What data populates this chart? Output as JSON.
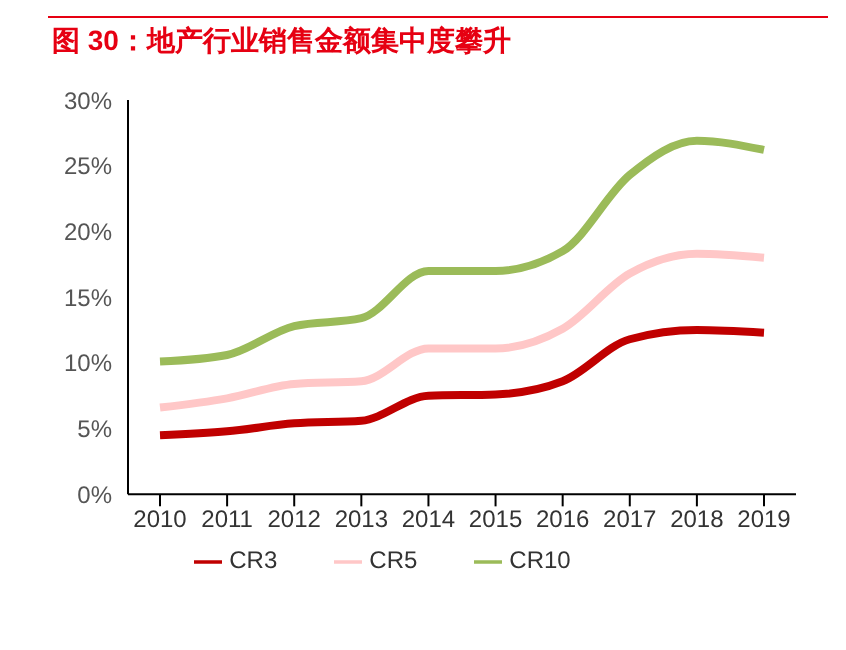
{
  "chart_data": {
    "type": "line",
    "title": "图 30：地产行业销售金额集中度攀升",
    "categories": [
      "2010",
      "2011",
      "2012",
      "2013",
      "2014",
      "2015",
      "2016",
      "2017",
      "2018",
      "2019"
    ],
    "series": [
      {
        "name": "CR3",
        "color": "#c00000",
        "values": [
          4.5,
          4.8,
          5.4,
          5.6,
          7.5,
          7.6,
          8.6,
          11.8,
          12.5,
          12.3
        ]
      },
      {
        "name": "CR5",
        "color": "#ffc7c7",
        "values": [
          6.6,
          7.3,
          8.4,
          8.6,
          11.1,
          11.1,
          12.6,
          16.8,
          18.3,
          18.0
        ]
      },
      {
        "name": "CR10",
        "color": "#9bbb59",
        "values": [
          10.1,
          10.6,
          12.8,
          13.4,
          17.0,
          17.0,
          18.5,
          24.3,
          26.9,
          26.2
        ]
      }
    ],
    "ylim": [
      0,
      30
    ],
    "yticks": [
      {
        "value": 0,
        "label": "0%"
      },
      {
        "value": 5,
        "label": "5%"
      },
      {
        "value": 10,
        "label": "10%"
      },
      {
        "value": 15,
        "label": "15%"
      },
      {
        "value": 20,
        "label": "20%"
      },
      {
        "value": 25,
        "label": "25%"
      },
      {
        "value": 30,
        "label": "30%"
      }
    ],
    "grid": false,
    "legend": "bottom",
    "marker": "none",
    "line_style": "solid"
  }
}
